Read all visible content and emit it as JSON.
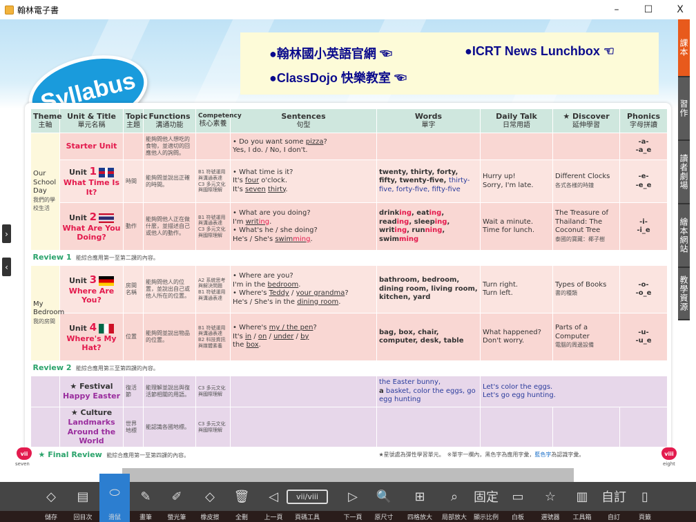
{
  "window": {
    "title": "翰林電子書",
    "min": "–",
    "max": "☐",
    "close": "X"
  },
  "logo": "Syllabus",
  "links": [
    {
      "label": "●翰林國小英語官網 ☜"
    },
    {
      "label": "●ICRT News Lunchbox ☜"
    },
    {
      "label": "●ClassDojo 快樂教室 ☜"
    }
  ],
  "headers": [
    {
      "en": "Theme",
      "zh": "主軸"
    },
    {
      "en": "Unit & Title",
      "zh": "單元名稱"
    },
    {
      "en": "Topic",
      "zh": "主題"
    },
    {
      "en": "Functions",
      "zh": "溝通功能"
    },
    {
      "en": "Competency",
      "zh": "核心素養"
    },
    {
      "en": "Sentences",
      "zh": "句型"
    },
    {
      "en": "Words",
      "zh": "單字"
    },
    {
      "en": "Daily Talk",
      "zh": "日常用語"
    },
    {
      "en": "★ Discover",
      "zh": "延伸學習"
    },
    {
      "en": "Phonics",
      "zh": "字母拼讀"
    }
  ],
  "themes": [
    {
      "en": "Our School Day",
      "zh": "我們的學校生活"
    },
    {
      "en": "My Bedroom",
      "zh": "我的房間"
    }
  ],
  "rows": [
    {
      "unit": "",
      "title": "Starter Unit",
      "topic": "",
      "functions": "能夠問他人想吃的食物，並適切的回應他人的詢問。",
      "competency": "",
      "sentences": "• Do you want some pizza?\nYes, I do. / No, I don't.",
      "words": "",
      "talk": "",
      "discover": "",
      "discover_zh": "",
      "phonics": "-a-\n-a_e"
    },
    {
      "unit": "Unit",
      "num": "1",
      "title": "What Time Is It?",
      "topic": "時間",
      "functions": "能夠問並說出正確的時間。",
      "competency": "B1 符號運用與溝通表達\nC3 多元文化與國際理解",
      "sentences": "• What time is it?\nIt's four o'clock.\nIt's seven thirty.",
      "words": "twenty, thirty, forty, fifty, twenty-five,",
      "words_blue": "thirty-five, forty-five, fifty-five",
      "talk": "Hurry up!\nSorry, I'm late.",
      "discover": "Different Clocks",
      "discover_zh": "各式各樣的時鐘",
      "phonics": "-e-\n-e_e"
    },
    {
      "unit": "Unit",
      "num": "2",
      "title": "What Are You Doing?",
      "topic": "動作",
      "functions": "能夠問他人正在做什麼，並描述自己或他人的動作。",
      "competency": "B1 符號運用與溝通表達\nC3 多元文化與國際理解",
      "sentences": "• What are you doing?\nI'm writing.\n• What's he / she doing?\nHe's / She's swimming.",
      "words": "drinking, eating, reading, sleeping, writing, running, swimming",
      "talk": "Wait a minute.\nTime for lunch.",
      "discover": "The Treasure of Thailand: The Coconut Tree",
      "discover_zh": "泰國的寶藏：椰子樹",
      "phonics": "-i-\n-i_e"
    },
    {
      "unit": "Unit",
      "num": "3",
      "title": "Where Are You?",
      "topic": "房間名稱",
      "functions": "能夠問他人的位置，並說出自己或他人所在的位置。",
      "competency": "A2 系統思考與解決問題\nB1 符號運用與溝通表達",
      "sentences": "• Where are you?\nI'm in the bedroom.\n• Where's Teddy / your grandma?\nHe's / She's in the dining room.",
      "words": "bathroom, bedroom, dining room, living room, kitchen, yard",
      "talk": "Turn right.\nTurn left.",
      "discover": "Types of Books",
      "discover_zh": "書的種類",
      "phonics": "-o-\n-o_e"
    },
    {
      "unit": "Unit",
      "num": "4",
      "title": "Where's My Hat?",
      "topic": "位置",
      "functions": "能夠問並說出物品的位置。",
      "competency": "B1 符號運用與溝通表達\nB2 科技資訊與媒體素養",
      "sentences": "• Where's my / the pen?\nIt's in / on / under / by the box.",
      "words": "bag, box, chair, computer, desk, table",
      "talk": "What happened?\nDon't worry.",
      "discover": "Parts of a Computer",
      "discover_zh": "電腦的周邊設備",
      "phonics": "-u-\n-u_e"
    }
  ],
  "reviews": [
    {
      "label": "Review 1",
      "desc": "能綜合應用第一至第二課的內容。"
    },
    {
      "label": "Review 2",
      "desc": "能綜合應用第三至第四課的內容。"
    },
    {
      "label": "★ Final Review",
      "desc": "能綜合應用第一至第四課的內容。"
    }
  ],
  "extras": [
    {
      "kind": "★ Festival",
      "title": "Happy Easter",
      "topic": "復活節",
      "functions": "能理解並說出與復活節相關的用語。",
      "competency": "C3 多元文化與國際理解",
      "words_a": "the Easter bunny,",
      "words_b": "a",
      "words_c": " basket, color the eggs, go egg hunting",
      "talk": "Let's color the eggs.\nLet's go egg hunting."
    },
    {
      "kind": "★ Culture",
      "title": "Landmarks Around the World",
      "topic": "世界地標",
      "functions": "能認識各國地標。",
      "competency": "C3 多元文化與國際理解"
    }
  ],
  "footnote": {
    "a": "★星號處為彈性學習單元。　※單字一欄內，黑色字為應用字彙，",
    "b": "藍色字",
    "c": "為認識字彙。"
  },
  "pages": {
    "left": "vii",
    "left_word": "seven",
    "right": "viii",
    "right_word": "eight"
  },
  "side_tabs": [
    "課本",
    "習作",
    "讀者劇場",
    "繪本網站",
    "教學資源"
  ],
  "nav": {
    "next": "›",
    "prev": "‹"
  },
  "toolbar": [
    {
      "label": "儲存",
      "icon": "◇"
    },
    {
      "label": "回目次",
      "icon": "▤"
    },
    {
      "label": "滑鼠",
      "icon": "⬭"
    },
    {
      "label": "畫筆",
      "icon": "✎"
    },
    {
      "label": "螢光筆",
      "icon": "✐"
    },
    {
      "label": "橡皮擦",
      "icon": "◇"
    },
    {
      "label": "全刪",
      "icon": "🗑"
    },
    {
      "label": "上一頁",
      "icon": "◁"
    },
    {
      "label": "頁碼工具",
      "icon": "vii/viii"
    },
    {
      "label": "下一頁",
      "icon": "▷"
    },
    {
      "label": "原尺寸",
      "icon": "🔍"
    },
    {
      "label": "四格放大",
      "icon": "⊞"
    },
    {
      "label": "局部放大",
      "icon": "⌕"
    },
    {
      "label": "顯示比例",
      "icon": "固定"
    },
    {
      "label": "白板",
      "icon": "▭"
    },
    {
      "label": "選號器",
      "icon": "☆"
    },
    {
      "label": "工具箱",
      "icon": "▥"
    },
    {
      "label": "自訂",
      "icon": "自訂"
    },
    {
      "label": "頁籤",
      "icon": "▯"
    }
  ],
  "colors": {
    "accent_tab": "#e85a1c",
    "active_tool": "#2c7ed0",
    "unit_title": "#e3194c",
    "review": "#2aa36b",
    "link": "#0a0a8c"
  }
}
